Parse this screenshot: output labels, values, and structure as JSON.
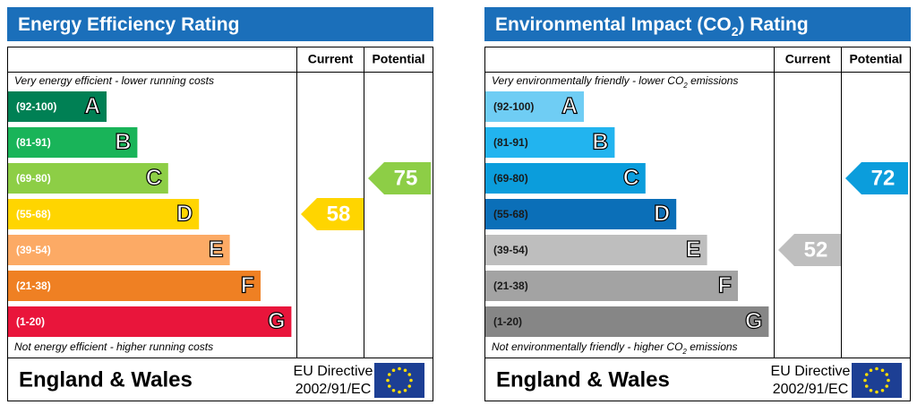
{
  "panels": [
    {
      "title": [
        "Energy Efficiency Rating"
      ],
      "columns": [
        "Current",
        "Potential"
      ],
      "top_note": [
        "Very energy efficient - lower running costs"
      ],
      "bands": [
        {
          "range": "(92-100)",
          "letter": "A",
          "color": "#008054"
        },
        {
          "range": "(81-91)",
          "letter": "B",
          "color": "#19b459"
        },
        {
          "range": "(69-80)",
          "letter": "C",
          "color": "#8dce46"
        },
        {
          "range": "(55-68)",
          "letter": "D",
          "color": "#ffd500"
        },
        {
          "range": "(39-54)",
          "letter": "E",
          "color": "#fcaa65"
        },
        {
          "range": "(21-38)",
          "letter": "F",
          "color": "#ef8023"
        },
        {
          "range": "(1-20)",
          "letter": "G",
          "color": "#e9153b"
        }
      ],
      "label_color": "#ffffff",
      "bottom_note": [
        "Not energy efficient - higher running costs"
      ],
      "current": 58,
      "potential": 75,
      "region": "England & Wales",
      "directive": [
        "EU Directive",
        "2002/91/EC"
      ]
    },
    {
      "title": [
        "Environmental Impact (CO",
        "2",
        ") Rating"
      ],
      "columns": [
        "Current",
        "Potential"
      ],
      "top_note": [
        "Very environmentally friendly - lower CO",
        "2",
        " emissions"
      ],
      "bands": [
        {
          "range": "(92-100)",
          "letter": "A",
          "color": "#6fcdf4"
        },
        {
          "range": "(81-91)",
          "letter": "B",
          "color": "#22b4ef"
        },
        {
          "range": "(69-80)",
          "letter": "C",
          "color": "#0b9ddc"
        },
        {
          "range": "(55-68)",
          "letter": "D",
          "color": "#0b6fb8"
        },
        {
          "range": "(39-54)",
          "letter": "E",
          "color": "#bebebe"
        },
        {
          "range": "(21-38)",
          "letter": "F",
          "color": "#a3a3a3"
        },
        {
          "range": "(1-20)",
          "letter": "G",
          "color": "#868686"
        }
      ],
      "label_color": "#1a1a1a",
      "bottom_note": [
        "Not environmentally friendly - higher CO",
        "2",
        " emissions"
      ],
      "current": 52,
      "potential": 72,
      "region": "England & Wales",
      "directive": [
        "EU Directive",
        "2002/91/EC"
      ]
    }
  ]
}
